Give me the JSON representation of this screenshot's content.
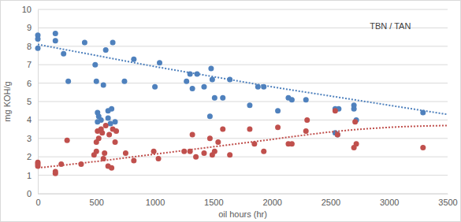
{
  "chart_data": {
    "type": "scatter",
    "x_label": "oil hours (hr)",
    "y_label": "mg KOH/g",
    "annotations": [
      "TBN / TAN"
    ],
    "xlim": [
      0,
      3500
    ],
    "xticks": [
      0,
      500,
      1000,
      1500,
      2000,
      2500,
      3000,
      3500
    ],
    "ylim": [
      0,
      10
    ],
    "yticks": [
      0,
      1,
      2,
      3,
      4,
      5,
      6,
      7,
      8,
      9,
      10
    ],
    "grid": true,
    "series": [
      {
        "type": "scatter",
        "marker": "circle",
        "color": "#4f81bd",
        "x": [
          0,
          0,
          0,
          150,
          150,
          220,
          260,
          400,
          490,
          500,
          510,
          510,
          520,
          540,
          560,
          580,
          600,
          600,
          620,
          630,
          640,
          660,
          740,
          820,
          1000,
          1040,
          1270,
          1300,
          1320,
          1360,
          1420,
          1470,
          1480,
          1490,
          1510,
          1580,
          1640,
          1810,
          1880,
          1930,
          2050,
          2140,
          2170,
          2290,
          2540,
          2540,
          2560,
          2570,
          2700,
          2700,
          2720,
          3290
        ],
        "values": [
          8.6,
          8.4,
          7.9,
          8.7,
          8.3,
          7.6,
          6.1,
          8.2,
          7.0,
          6.1,
          4.4,
          3.9,
          4.2,
          4.0,
          5.9,
          7.8,
          4.1,
          4.5,
          3.8,
          4.6,
          8.2,
          3.9,
          6.1,
          7.3,
          5.8,
          7.1,
          6.1,
          6.5,
          5.7,
          6.5,
          5.8,
          4.2,
          6.8,
          6.2,
          5.2,
          5.2,
          6.2,
          4.8,
          5.8,
          5.8,
          4.5,
          5.2,
          5.1,
          5.1,
          3.3,
          4.6,
          3.2,
          4.6,
          4.8,
          4.6,
          4.0,
          4.4
        ]
      },
      {
        "type": "scatter",
        "marker": "circle",
        "color": "#c0504d",
        "x": [
          0,
          0,
          0,
          150,
          150,
          200,
          250,
          370,
          480,
          500,
          500,
          510,
          520,
          540,
          550,
          560,
          570,
          580,
          600,
          610,
          630,
          640,
          660,
          670,
          750,
          820,
          990,
          1030,
          1250,
          1300,
          1320,
          1350,
          1420,
          1470,
          1490,
          1510,
          1540,
          1580,
          1640,
          1810,
          1850,
          1930,
          2050,
          2140,
          2170,
          2290,
          2300,
          2540,
          2560,
          2700,
          2710,
          2720,
          3290
        ],
        "values": [
          1.7,
          1.5,
          1.6,
          1.2,
          1.1,
          1.6,
          2.9,
          1.6,
          2.1,
          2.3,
          2.8,
          3.4,
          3.0,
          3.5,
          3.3,
          1.9,
          2.2,
          3.7,
          1.5,
          3.2,
          1.4,
          3.5,
          2.8,
          3.4,
          2.2,
          1.8,
          2.3,
          1.9,
          2.3,
          2.3,
          3.2,
          2.0,
          2.2,
          3.0,
          2.1,
          2.3,
          2.8,
          3.5,
          2.1,
          3.5,
          2.7,
          2.3,
          3.6,
          2.7,
          2.7,
          3.4,
          4.0,
          4.5,
          3.2,
          2.5,
          3.9,
          2.7,
          2.5
        ]
      },
      {
        "type": "line",
        "line_style": "dotted",
        "color": "#4f81bd",
        "x": [
          0,
          500,
          1000,
          1500,
          2000,
          2500,
          3000,
          3500
        ],
        "values": [
          8.1,
          7.5,
          6.9,
          6.35,
          5.8,
          5.3,
          4.8,
          4.3
        ]
      },
      {
        "type": "line",
        "line_style": "dotted",
        "color": "#c0504d",
        "x": [
          0,
          500,
          1000,
          1500,
          2000,
          2500,
          3000,
          3500
        ],
        "values": [
          1.4,
          1.75,
          2.15,
          2.55,
          2.95,
          3.35,
          3.6,
          3.7
        ]
      }
    ]
  }
}
